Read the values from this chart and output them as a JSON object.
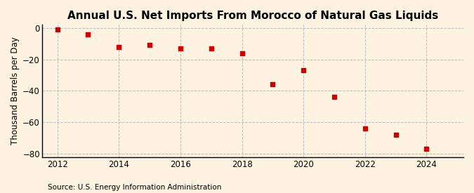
{
  "title": "Annual U.S. Net Imports From Morocco of Natural Gas Liquids",
  "ylabel": "Thousand Barrels per Day",
  "source": "Source: U.S. Energy Information Administration",
  "background_color": "#fdf3e0",
  "marker_color": "#cc0000",
  "grid_color": "#bbbbbb",
  "years": [
    2012,
    2013,
    2014,
    2015,
    2016,
    2017,
    2018,
    2019,
    2020,
    2021,
    2022,
    2023,
    2024
  ],
  "values": [
    -1,
    -4,
    -12,
    -11,
    -13,
    -13,
    -16,
    -36,
    -27,
    -44,
    -64,
    -68,
    -77
  ],
  "ylim": [
    -82,
    2
  ],
  "xlim": [
    2011.5,
    2025.2
  ],
  "yticks": [
    0,
    -20,
    -40,
    -60,
    -80
  ],
  "xticks": [
    2012,
    2014,
    2016,
    2018,
    2020,
    2022,
    2024
  ],
  "title_fontsize": 11,
  "label_fontsize": 8.5,
  "source_fontsize": 7.5,
  "marker_size": 5
}
